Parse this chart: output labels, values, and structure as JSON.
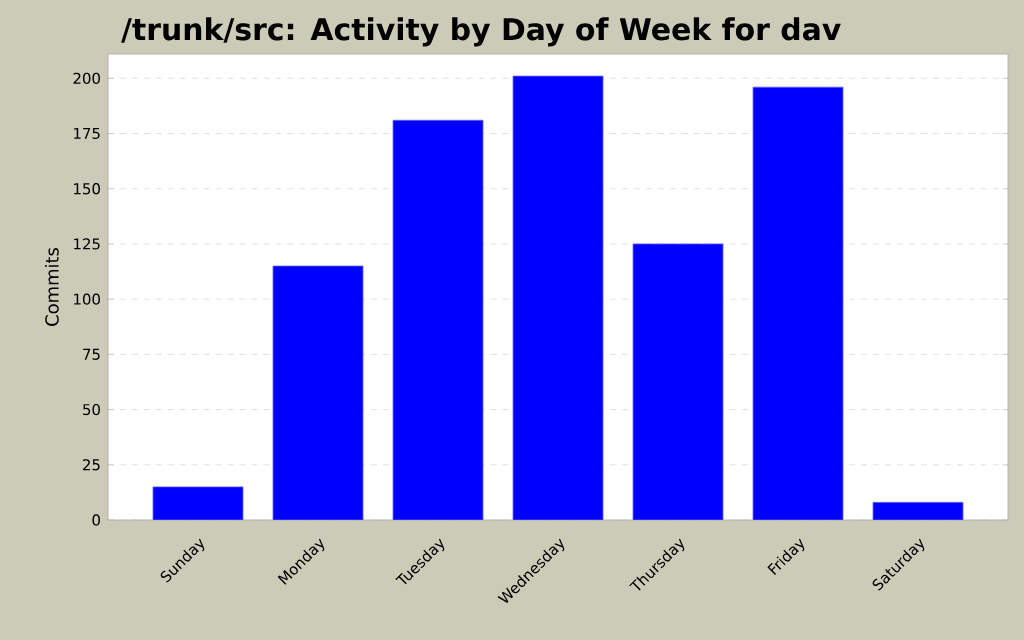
{
  "chart_data": {
    "type": "bar",
    "title": "/trunk/src: Activity by Day of Week for dav",
    "ylabel": "Commits",
    "categories": [
      "Sunday",
      "Monday",
      "Tuesday",
      "Wednesday",
      "Thursday",
      "Friday",
      "Saturday"
    ],
    "values": [
      15,
      115,
      181,
      201,
      125,
      196,
      8
    ],
    "color": "#0000ff",
    "ylim": [
      0,
      211
    ],
    "yticks": [
      0,
      25,
      50,
      75,
      100,
      125,
      150,
      175,
      200
    ],
    "grid": "y"
  }
}
